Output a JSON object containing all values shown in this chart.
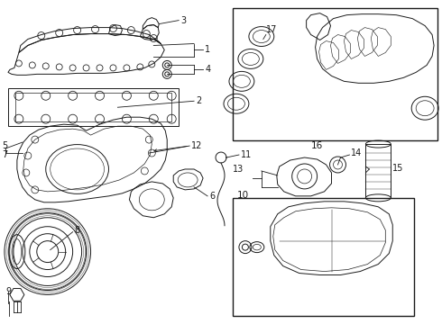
{
  "background_color": "#ffffff",
  "line_color": "#1a1a1a",
  "lw": 0.7,
  "figsize": [
    4.9,
    3.6
  ],
  "dpi": 100
}
